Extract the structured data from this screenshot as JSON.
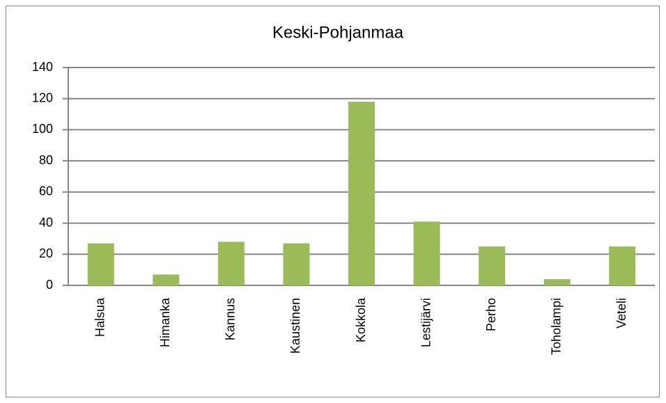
{
  "chart_data": {
    "type": "bar",
    "title": "Keski-Pohjanmaa",
    "categories": [
      "Halsua",
      "Himanka",
      "Kannus",
      "Kaustinen",
      "Kokkola",
      "Lestijärvi",
      "Perho",
      "Toholampi",
      "Veteli"
    ],
    "values": [
      27,
      7,
      28,
      27,
      118,
      41,
      25,
      4,
      25
    ],
    "color": "#9bbb59",
    "ylim": [
      0,
      140
    ],
    "yticks": [
      0,
      20,
      40,
      60,
      80,
      100,
      120,
      140
    ],
    "grid": true
  }
}
